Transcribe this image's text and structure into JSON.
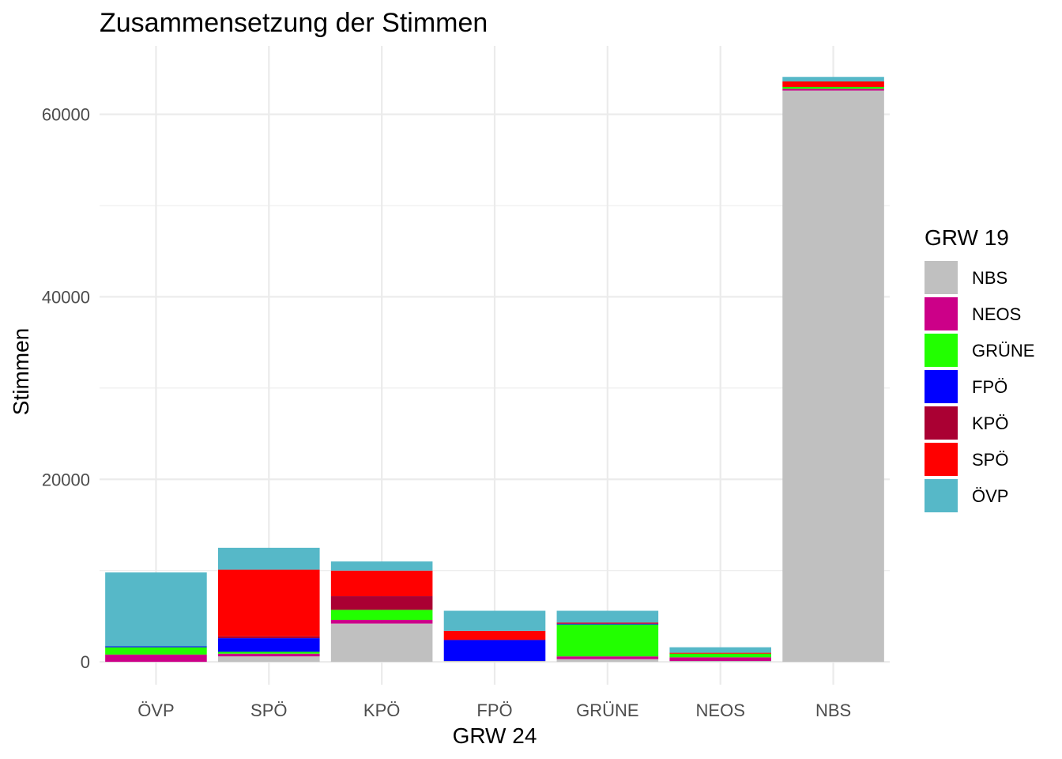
{
  "chart_data": {
    "type": "bar",
    "stacked": true,
    "title": "Zusammensetzung der Stimmen",
    "xlabel": "GRW 24",
    "ylabel": "Stimmen",
    "categories": [
      "ÖVP",
      "SPÖ",
      "KPÖ",
      "FPÖ",
      "GRÜNE",
      "NEOS",
      "NBS"
    ],
    "ylim": [
      -2500,
      67500
    ],
    "y_ticks": [
      0,
      20000,
      40000,
      60000
    ],
    "y_tick_labels": [
      "0",
      "20000",
      "40000",
      "60000"
    ],
    "y_minor_ticks": [
      10000,
      30000,
      50000
    ],
    "grid": true,
    "legend": {
      "title": "GRW 19",
      "position": "right"
    },
    "stack_order": [
      "NBS",
      "NEOS",
      "GRÜNE",
      "FPÖ",
      "KPÖ",
      "SPÖ",
      "ÖVP"
    ],
    "series": [
      {
        "name": "NBS",
        "color": "#C0C0C0",
        "values": [
          0,
          600,
          4200,
          100,
          300,
          100,
          62600
        ]
      },
      {
        "name": "NEOS",
        "color": "#CC0088",
        "values": [
          800,
          300,
          400,
          0,
          300,
          400,
          200
        ]
      },
      {
        "name": "GRÜNE",
        "color": "#22FF00",
        "values": [
          800,
          200,
          1100,
          0,
          3500,
          400,
          200
        ]
      },
      {
        "name": "FPÖ",
        "color": "#0000FF",
        "values": [
          100,
          1500,
          0,
          2300,
          100,
          0,
          0
        ]
      },
      {
        "name": "KPÖ",
        "color": "#AA0033",
        "values": [
          0,
          200,
          1500,
          0,
          0,
          0,
          0
        ]
      },
      {
        "name": "SPÖ",
        "color": "#FF0000",
        "values": [
          0,
          7300,
          2800,
          1000,
          100,
          100,
          600
        ]
      },
      {
        "name": "ÖVP",
        "color": "#56B8C8",
        "values": [
          8100,
          2400,
          1000,
          2200,
          1300,
          600,
          500
        ]
      }
    ]
  }
}
